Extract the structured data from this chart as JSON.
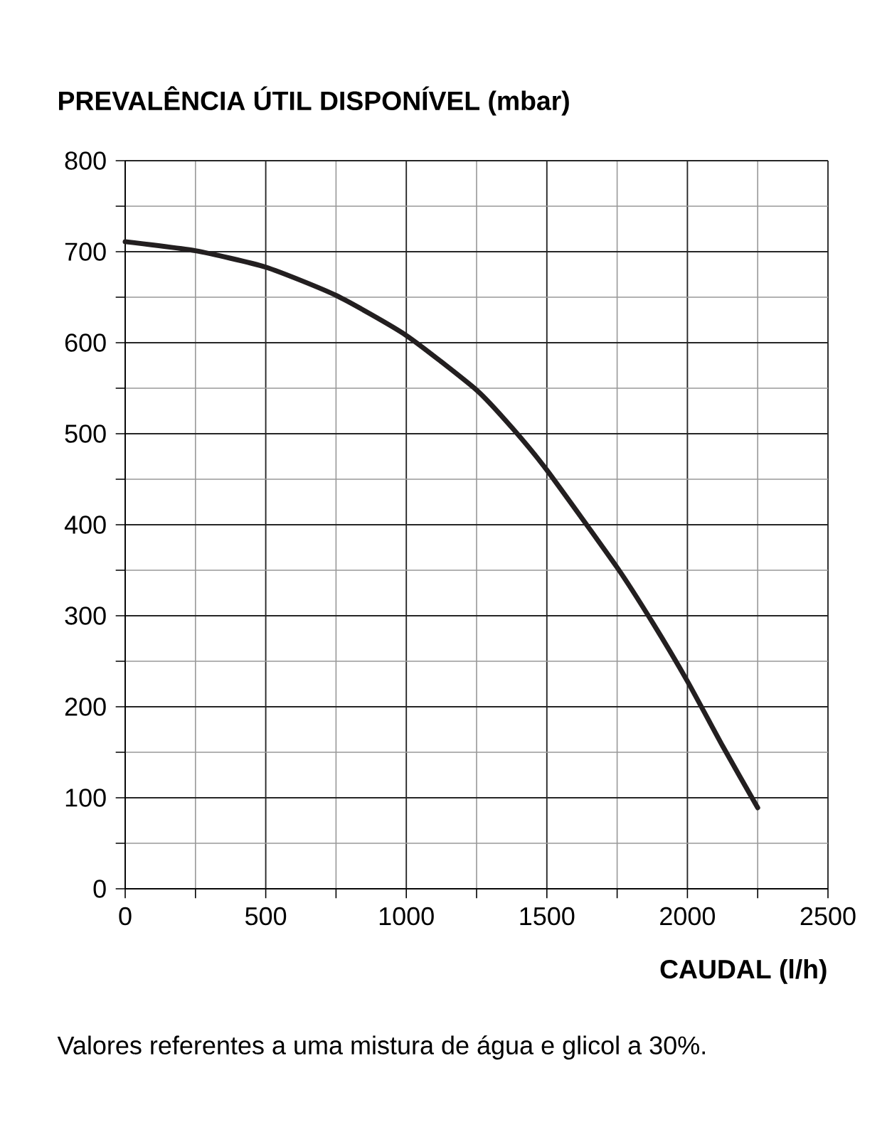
{
  "chart_data": {
    "type": "line",
    "ylabel": "PREVALÊNCIA ÚTIL DISPONÍVEL (mbar)",
    "xlabel": "CAUDAL (l/h)",
    "annotations": [
      "Valores referentes a uma mistura de água e glicol a 30%."
    ],
    "x": [
      0,
      250,
      500,
      750,
      1000,
      1250,
      1375,
      1500,
      1750,
      1875,
      2000,
      2125,
      2250
    ],
    "values": [
      711,
      701,
      683,
      652,
      608,
      548,
      507,
      460,
      353,
      293,
      228,
      157,
      89
    ],
    "color": "#231f20",
    "xlim": [
      0,
      2500
    ],
    "ylim": [
      0,
      800
    ],
    "xticks": [
      0,
      500,
      1000,
      1500,
      2000,
      2500
    ],
    "yticks": [
      0,
      100,
      200,
      300,
      400,
      500,
      600,
      700,
      800
    ],
    "grid": true
  }
}
